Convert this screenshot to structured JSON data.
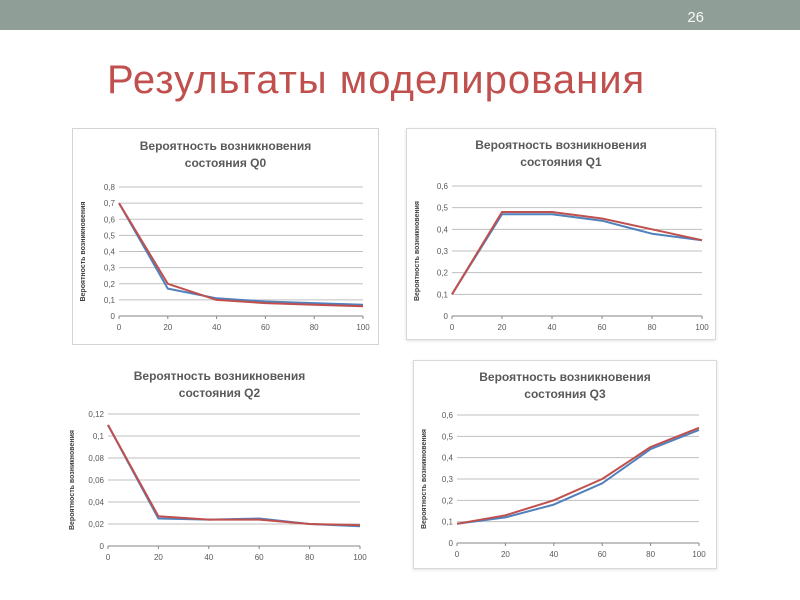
{
  "slide": {
    "page_number": "26",
    "title": "Результаты моделирования"
  },
  "colors": {
    "top_bar": "#8f9e96",
    "title": "#c0504d",
    "series_blue": "#4f81bd",
    "series_red": "#c0504d"
  },
  "chart_data": [
    {
      "id": "q0",
      "type": "line",
      "title_lines": [
        "Вероятность возникновения",
        "состояния Q0"
      ],
      "ylabel": "Вероятность возникновения",
      "xlabel": "",
      "x": [
        0,
        20,
        40,
        60,
        80,
        100
      ],
      "x_ticks": [
        "0",
        "20",
        "40",
        "60",
        "80",
        "100"
      ],
      "ylim": [
        0,
        0.8
      ],
      "y_ticks": [
        "0",
        "0,1",
        "0,2",
        "0,3",
        "0,4",
        "0,5",
        "0,6",
        "0,7",
        "0,8"
      ],
      "grid": true,
      "legend": "none",
      "series": [
        {
          "color": "#4f81bd",
          "values": [
            0.7,
            0.17,
            0.11,
            0.09,
            0.08,
            0.07
          ]
        },
        {
          "color": "#c0504d",
          "values": [
            0.7,
            0.2,
            0.1,
            0.08,
            0.07,
            0.06
          ]
        }
      ]
    },
    {
      "id": "q1",
      "type": "line",
      "title_lines": [
        "Вероятность возникновения",
        "состояния Q1"
      ],
      "ylabel": "Вероятность возникновения",
      "xlabel": "",
      "x": [
        0,
        20,
        40,
        60,
        80,
        100
      ],
      "x_ticks": [
        "0",
        "20",
        "40",
        "60",
        "80",
        "100"
      ],
      "ylim": [
        0,
        0.6
      ],
      "y_ticks": [
        "0",
        "0,1",
        "0,2",
        "0,3",
        "0,4",
        "0,5",
        "0,6"
      ],
      "grid": true,
      "legend": "none",
      "series": [
        {
          "color": "#4f81bd",
          "values": [
            0.1,
            0.47,
            0.47,
            0.44,
            0.38,
            0.35
          ]
        },
        {
          "color": "#c0504d",
          "values": [
            0.1,
            0.48,
            0.48,
            0.45,
            0.4,
            0.35
          ]
        }
      ]
    },
    {
      "id": "q2",
      "type": "line",
      "title_lines": [
        "Вероятность возникновения",
        "состояния Q2"
      ],
      "ylabel": "Вероятность возникновения",
      "xlabel": "",
      "x": [
        0,
        20,
        40,
        60,
        80,
        100
      ],
      "x_ticks": [
        "0",
        "20",
        "40",
        "60",
        "80",
        "100"
      ],
      "ylim": [
        0,
        0.12
      ],
      "y_ticks": [
        "0",
        "0,02",
        "0,04",
        "0,06",
        "0,08",
        "0,1",
        "0,12"
      ],
      "grid": true,
      "legend": "none",
      "series": [
        {
          "color": "#4f81bd",
          "values": [
            0.11,
            0.025,
            0.024,
            0.025,
            0.02,
            0.018
          ]
        },
        {
          "color": "#c0504d",
          "values": [
            0.11,
            0.027,
            0.024,
            0.024,
            0.02,
            0.019
          ]
        }
      ]
    },
    {
      "id": "q3",
      "type": "line",
      "title_lines": [
        "Вероятность возникновения",
        "состояния Q3"
      ],
      "ylabel": "Вероятность возникновения",
      "xlabel": "",
      "x": [
        0,
        20,
        40,
        60,
        80,
        100
      ],
      "x_ticks": [
        "0",
        "20",
        "40",
        "60",
        "80",
        "100"
      ],
      "ylim": [
        0,
        0.6
      ],
      "y_ticks": [
        "0",
        "0,1",
        "0,2",
        "0,3",
        "0,4",
        "0,5",
        "0,6"
      ],
      "grid": true,
      "legend": "none",
      "series": [
        {
          "color": "#4f81bd",
          "values": [
            0.09,
            0.12,
            0.18,
            0.28,
            0.44,
            0.53
          ]
        },
        {
          "color": "#c0504d",
          "values": [
            0.09,
            0.13,
            0.2,
            0.3,
            0.45,
            0.54
          ]
        }
      ]
    }
  ]
}
